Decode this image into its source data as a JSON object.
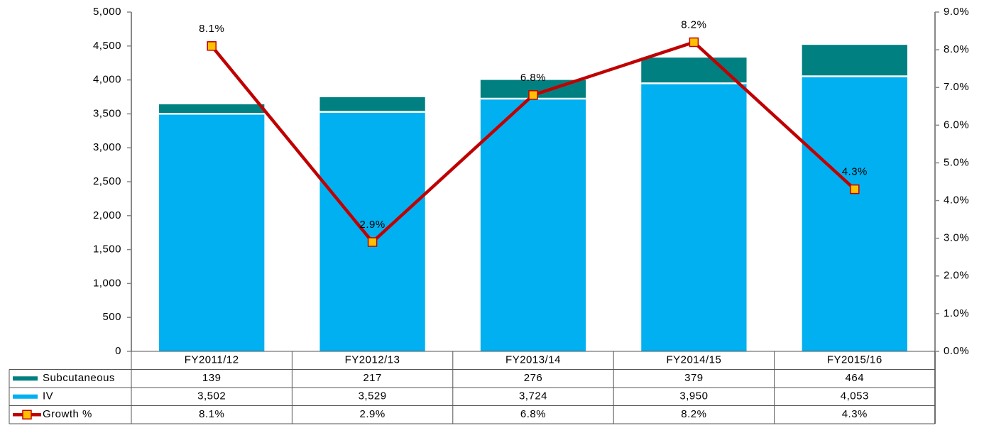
{
  "chart_data": {
    "type": "bar",
    "stacked": true,
    "categories": [
      "FY2011/12",
      "FY2012/13",
      "FY2013/14",
      "FY2014/15",
      "FY2015/16"
    ],
    "series": [
      {
        "name": "Subcutaneous",
        "color": "#008080",
        "values": [
          139,
          217,
          276,
          379,
          464
        ],
        "value_labels": [
          "139",
          "217",
          "276",
          "379",
          "464"
        ]
      },
      {
        "name": "IV",
        "color": "#00b0f0",
        "values": [
          3502,
          3529,
          3724,
          3950,
          4053
        ],
        "value_labels": [
          "3,502",
          "3,529",
          "3,724",
          "3,950",
          "4,053"
        ]
      },
      {
        "name": "Growth %",
        "type": "line",
        "axis": "y2",
        "color": "#c00000",
        "marker_color": "#ffc000",
        "values": [
          8.1,
          2.9,
          6.8,
          8.2,
          4.3
        ],
        "value_labels": [
          "8.1%",
          "2.9%",
          "6.8%",
          "8.2%",
          "4.3%"
        ]
      }
    ],
    "ylim": [
      0,
      5000
    ],
    "yticks": [
      0,
      500,
      {
        "value": 1000,
        "label": "1,000"
      },
      {
        "value": 1500,
        "label": "1,500"
      },
      {
        "value": 2000,
        "label": "2,000"
      },
      {
        "value": 2500,
        "label": "2,500"
      },
      {
        "value": 3000,
        "label": "3,000"
      },
      {
        "value": 3500,
        "label": "3,500"
      },
      {
        "value": 4000,
        "label": "4,000"
      },
      {
        "value": 4500,
        "label": "4,500"
      },
      {
        "value": 5000,
        "label": "5,000"
      }
    ],
    "y2lim": [
      0,
      9
    ],
    "y2ticks": [
      {
        "value": 0,
        "label": "0.0%"
      },
      {
        "value": 1,
        "label": "1.0%"
      },
      {
        "value": 2,
        "label": "2.0%"
      },
      {
        "value": 3,
        "label": "3.0%"
      },
      {
        "value": 4,
        "label": "4.0%"
      },
      {
        "value": 5,
        "label": "5.0%"
      },
      {
        "value": 6,
        "label": "6.0%"
      },
      {
        "value": 7,
        "label": "7.0%"
      },
      {
        "value": 8,
        "label": "8.0%"
      },
      {
        "value": 9,
        "label": "9.0%"
      }
    ],
    "data_table": true
  }
}
